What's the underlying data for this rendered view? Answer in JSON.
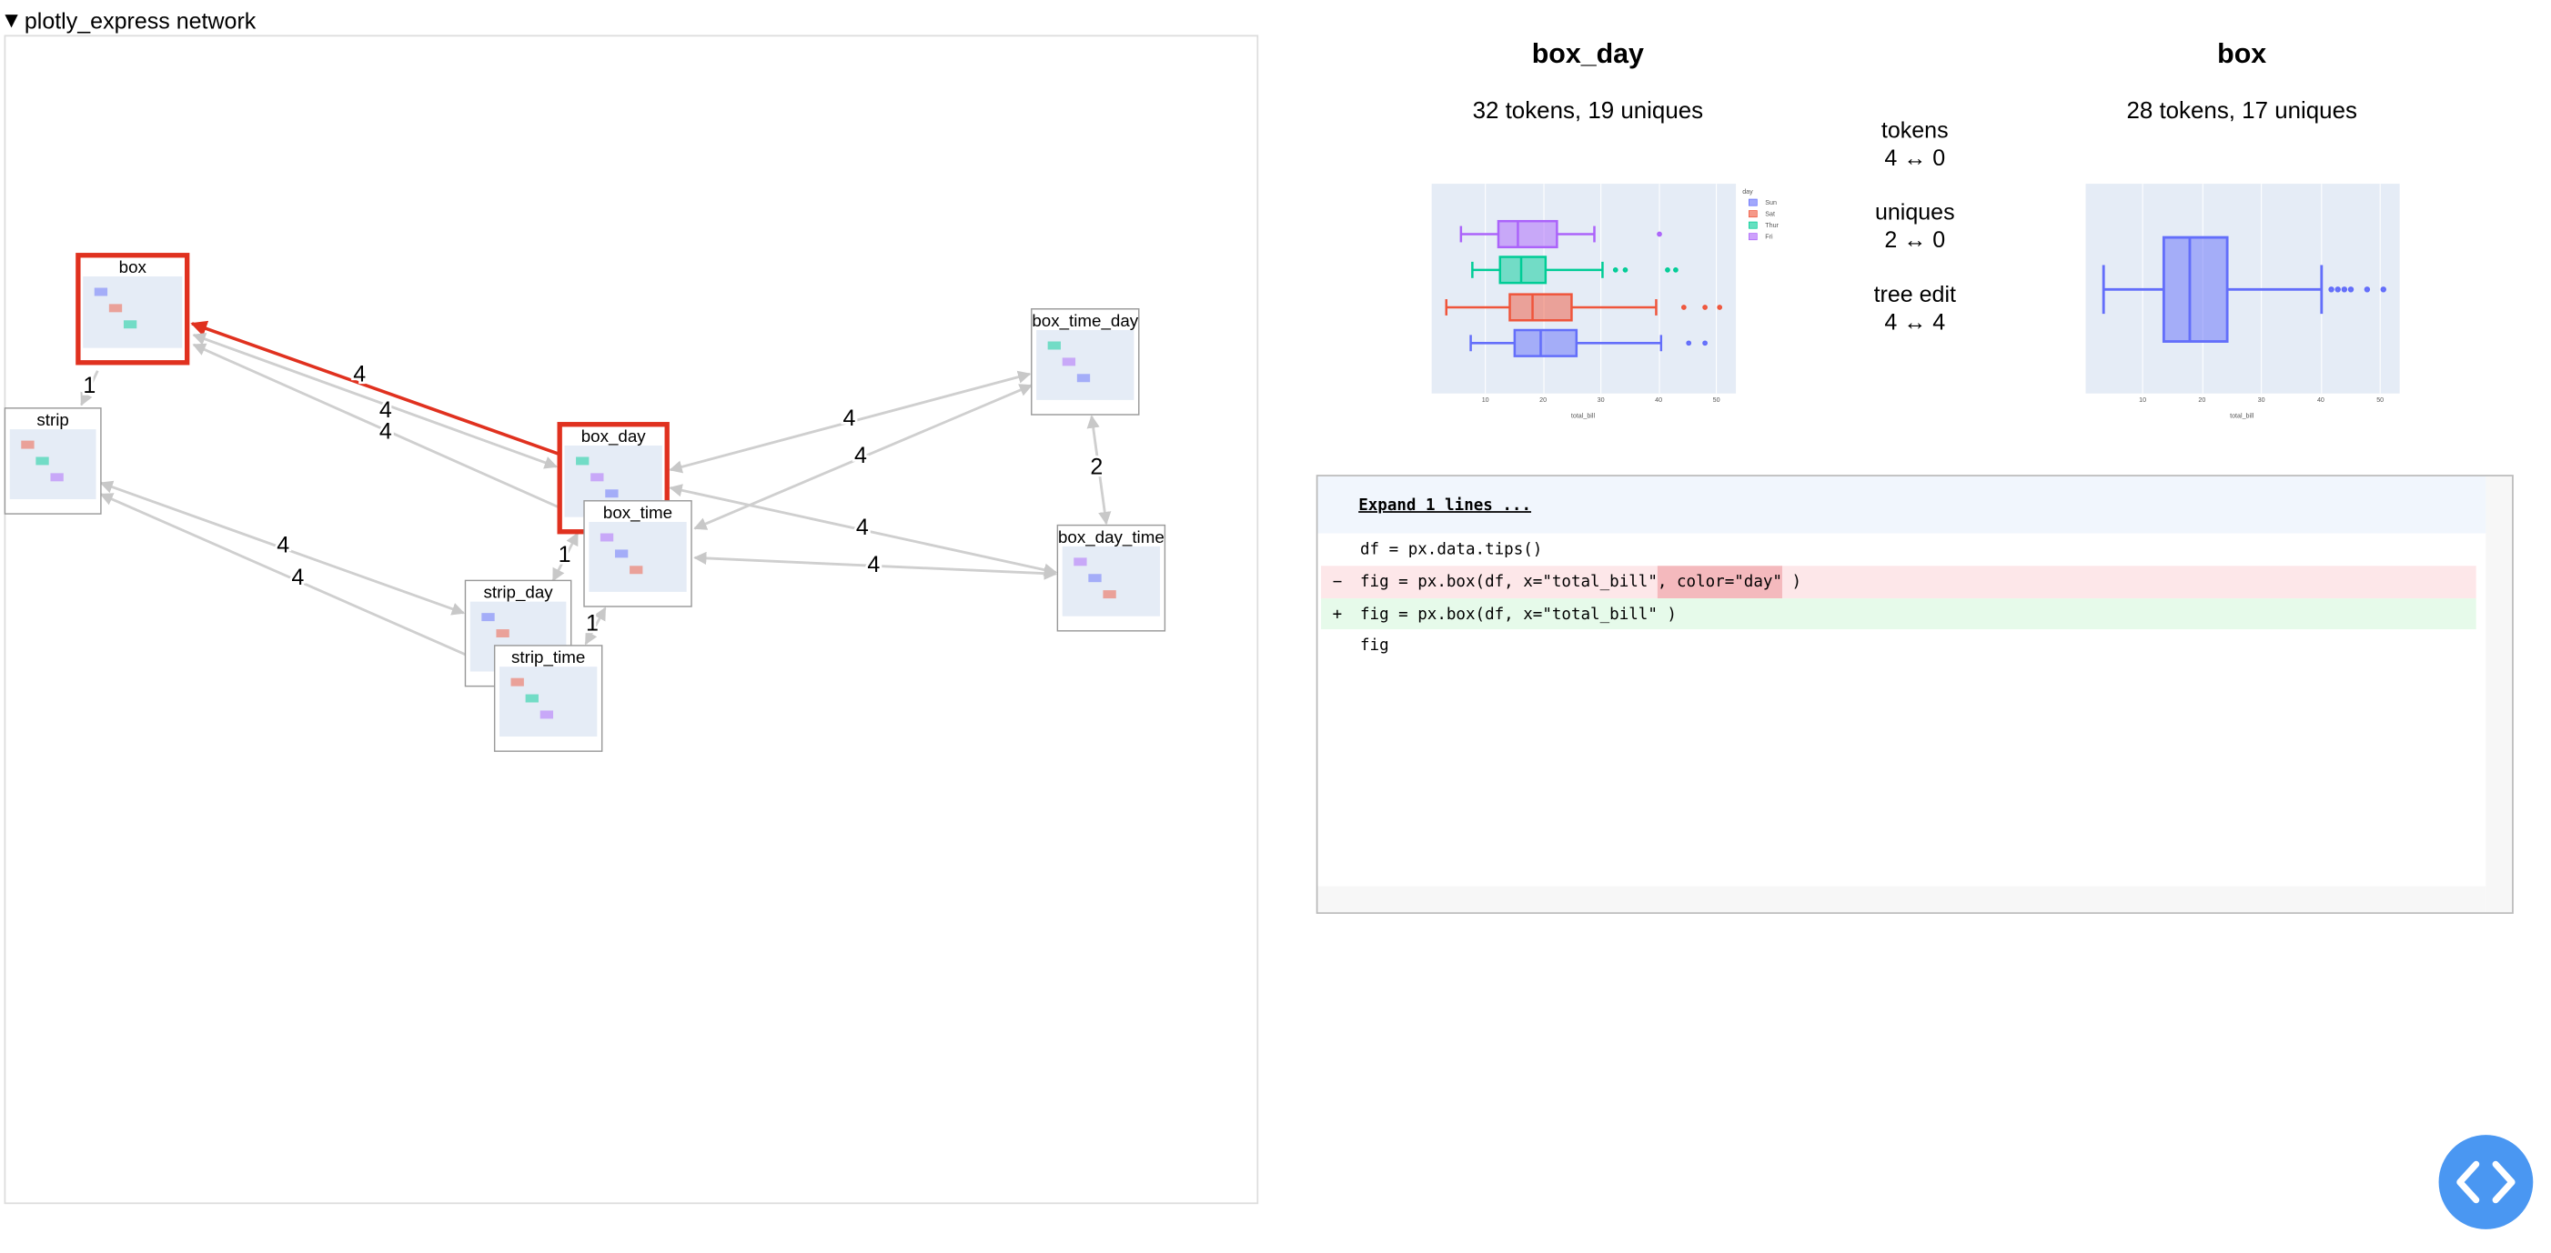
{
  "header": {
    "title": "plotly_express network"
  },
  "network": {
    "nodes": [
      {
        "label": "box",
        "selected": true
      },
      {
        "label": "strip"
      },
      {
        "label": "box_day",
        "selected": true
      },
      {
        "label": "box_time"
      },
      {
        "label": "strip_day"
      },
      {
        "label": "strip_time"
      },
      {
        "label": "box_time_day"
      },
      {
        "label": "box_day_time"
      }
    ],
    "edges": [
      {
        "label": 1
      },
      {
        "label": 4,
        "highlighted": true
      },
      {
        "label": 4
      },
      {
        "label": 4
      },
      {
        "label": 4
      },
      {
        "label": 4
      },
      {
        "label": 4
      },
      {
        "label": 4
      },
      {
        "label": 4
      },
      {
        "label": 4
      },
      {
        "label": 1
      },
      {
        "label": 1
      },
      {
        "label": 2
      }
    ]
  },
  "comparison": {
    "left": {
      "title": "box_day",
      "stats": "32 tokens, 19 uniques",
      "plot": {
        "xticks": [
          10,
          20,
          30,
          40,
          50
        ],
        "xlabel": "total_bill",
        "legend_title": "day",
        "legend": [
          "Sun",
          "Sat",
          "Thur",
          "Fri"
        ]
      }
    },
    "right": {
      "title": "box",
      "stats": "28 tokens, 17 uniques",
      "plot": {
        "xticks": [
          10,
          20,
          30,
          40,
          50
        ],
        "xlabel": "total_bill"
      }
    },
    "metrics": [
      {
        "label": "tokens",
        "value": "4 ↔ 0"
      },
      {
        "label": "uniques",
        "value": "2 ↔ 0"
      },
      {
        "label": "tree edit",
        "value": "4 ↔ 4"
      }
    ]
  },
  "diff": {
    "expand": "Expand 1 lines ...",
    "lines": [
      {
        "text": "df = px.data.tips()"
      },
      {
        "marker": "−",
        "parts": [
          "fig = px.box(df, x=\"total_bill\"",
          ", color=\"day\"",
          " )"
        ]
      },
      {
        "marker": "+",
        "text": "fig = px.box(df, x=\"total_bill\" )"
      },
      {
        "text": "fig"
      }
    ]
  }
}
